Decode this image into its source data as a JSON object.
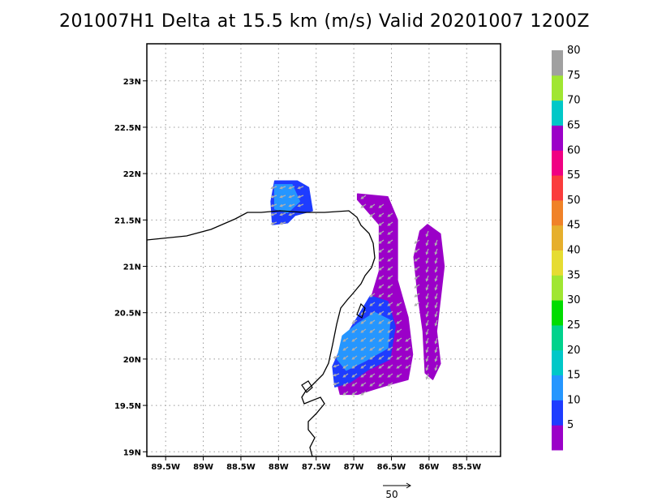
{
  "chart_data": {
    "type": "heatmap",
    "title": "201007H1 Delta at 15.5 km (m/s) Valid 20201007  1200Z",
    "xlim": [
      -89.75,
      -85.05
    ],
    "ylim": [
      18.95,
      23.4
    ],
    "x_ticks": [
      -89.5,
      -89,
      -88.5,
      -88,
      -87.5,
      -87,
      -86.5,
      -86,
      -85.5
    ],
    "x_tick_labels": [
      "89.5W",
      "89W",
      "88.5W",
      "88W",
      "87.5W",
      "87W",
      "86.5W",
      "86W",
      "85.5W"
    ],
    "y_ticks": [
      19,
      19.5,
      20,
      20.5,
      21,
      21.5,
      22,
      22.5,
      23
    ],
    "y_tick_labels": [
      "19N",
      "19.5N",
      "20N",
      "20.5N",
      "21N",
      "21.5N",
      "22N",
      "22.5N",
      "23N"
    ],
    "grid": true,
    "colorbar": {
      "labels": [
        "5",
        "10",
        "15",
        "20",
        "25",
        "30",
        "35",
        "40",
        "45",
        "50",
        "55",
        "60",
        "65",
        "70",
        "75",
        "80"
      ],
      "colors": [
        "#9b00c8",
        "#1e3cff",
        "#2596ff",
        "#00c8c8",
        "#00d28c",
        "#00dc00",
        "#a0e632",
        "#e6dc32",
        "#e6af2d",
        "#f08228",
        "#fa3c3c",
        "#f00082",
        "#9b00c8",
        "#00c8c8",
        "#a0e632",
        "#a0a0a0"
      ]
    },
    "wind_regions": [
      {
        "name": "",
        "value": 5,
        "polygon": [
          [
            -86.95,
            21.78
          ],
          [
            -86.55,
            21.75
          ],
          [
            -86.42,
            21.5
          ],
          [
            -86.42,
            20.85
          ],
          [
            -86.28,
            20.45
          ],
          [
            -86.22,
            20.05
          ],
          [
            -86.28,
            19.78
          ],
          [
            -86.55,
            19.72
          ],
          [
            -86.95,
            19.62
          ],
          [
            -87.18,
            19.62
          ],
          [
            -87.25,
            19.85
          ],
          [
            -87.02,
            20.1
          ],
          [
            -86.82,
            20.52
          ],
          [
            -86.66,
            20.95
          ],
          [
            -86.66,
            21.45
          ],
          [
            -86.95,
            21.72
          ]
        ]
      },
      {
        "name": "",
        "value": 5,
        "polygon": [
          [
            -86.02,
            21.45
          ],
          [
            -85.85,
            21.35
          ],
          [
            -85.8,
            21.0
          ],
          [
            -85.85,
            20.65
          ],
          [
            -85.9,
            20.3
          ],
          [
            -85.85,
            19.95
          ],
          [
            -85.95,
            19.78
          ],
          [
            -86.05,
            19.85
          ],
          [
            -86.08,
            20.3
          ],
          [
            -86.15,
            20.7
          ],
          [
            -86.2,
            21.1
          ],
          [
            -86.12,
            21.38
          ]
        ]
      },
      {
        "name": "",
        "value": 10,
        "polygon": [
          [
            -88.05,
            21.92
          ],
          [
            -87.75,
            21.92
          ],
          [
            -87.6,
            21.85
          ],
          [
            -87.55,
            21.6
          ],
          [
            -87.78,
            21.55
          ],
          [
            -87.88,
            21.47
          ],
          [
            -88.08,
            21.45
          ],
          [
            -88.1,
            21.7
          ]
        ]
      },
      {
        "name": "",
        "value": 10,
        "polygon": [
          [
            -86.78,
            20.68
          ],
          [
            -86.55,
            20.62
          ],
          [
            -86.45,
            20.35
          ],
          [
            -86.52,
            20.0
          ],
          [
            -86.82,
            19.88
          ],
          [
            -87.05,
            19.75
          ],
          [
            -87.25,
            19.7
          ],
          [
            -87.28,
            19.92
          ],
          [
            -87.1,
            20.25
          ],
          [
            -86.95,
            20.45
          ]
        ]
      },
      {
        "name": "",
        "value": 15,
        "polygon": [
          [
            -88.05,
            21.88
          ],
          [
            -87.82,
            21.88
          ],
          [
            -87.72,
            21.7
          ],
          [
            -87.88,
            21.58
          ],
          [
            -88.05,
            21.62
          ]
        ]
      },
      {
        "name": "",
        "value": 15,
        "polygon": [
          [
            -86.72,
            20.5
          ],
          [
            -86.52,
            20.42
          ],
          [
            -86.55,
            20.12
          ],
          [
            -86.85,
            19.98
          ],
          [
            -87.1,
            19.88
          ],
          [
            -87.22,
            20.0
          ],
          [
            -87.15,
            20.25
          ],
          [
            -86.95,
            20.38
          ]
        ]
      }
    ],
    "reference_vector": {
      "value": 50,
      "label": "50"
    }
  }
}
